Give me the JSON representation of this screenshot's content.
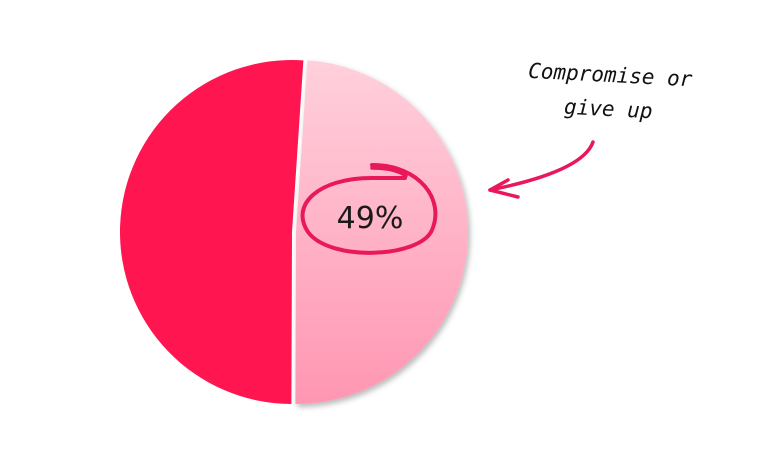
{
  "chart_data": {
    "type": "pie",
    "slices": [
      {
        "label": "",
        "value": 51,
        "color": "#ff1651"
      },
      {
        "label": "",
        "value": 49,
        "color": "#ffb3c6",
        "data_label": "49%",
        "highlighted": true
      }
    ],
    "annotation": {
      "lines": [
        "Compromise or",
        "give up"
      ],
      "color": "#e8185a"
    },
    "title": "",
    "legend": "none"
  }
}
